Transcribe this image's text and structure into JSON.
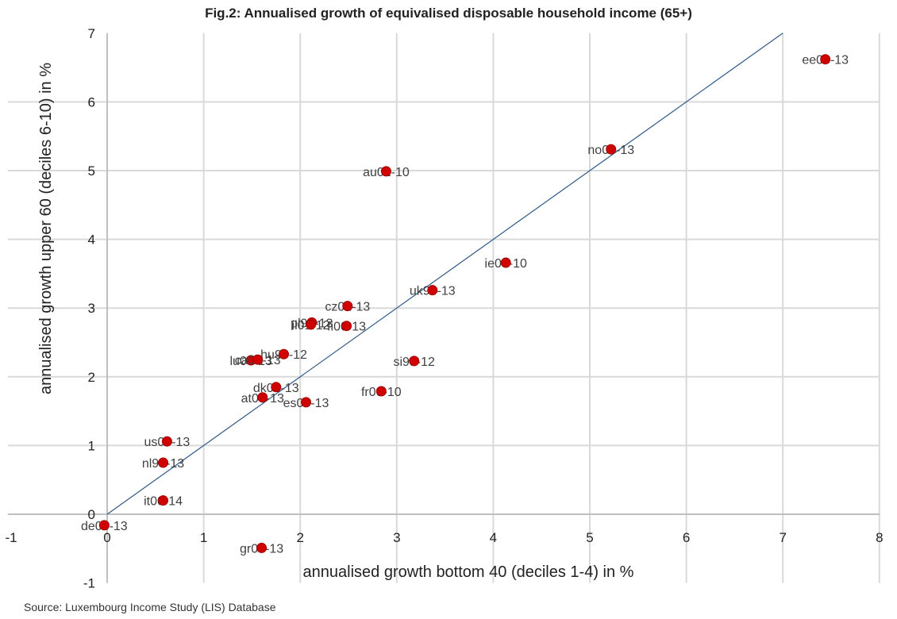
{
  "chart_data": {
    "type": "scatter",
    "title": "Fig.2: Annualised growth of equivalised disposable household income (65+)",
    "xlabel": "annualised growth bottom 40 (deciles 1-4) in %",
    "ylabel": "annualised growth upper 60 (deciles 6-10) in %",
    "xlim": [
      -1,
      8
    ],
    "ylim": [
      -1,
      7
    ],
    "xticks": [
      -1,
      0,
      1,
      2,
      3,
      4,
      5,
      6,
      7,
      8
    ],
    "yticks": [
      -1,
      0,
      1,
      2,
      3,
      4,
      5,
      6,
      7
    ],
    "grid": true,
    "reference_line": {
      "name": "45-degree line",
      "x": [
        0,
        7
      ],
      "y": [
        0,
        7
      ],
      "color": "#2e5a87"
    },
    "marker_color": "#d00000",
    "points": [
      {
        "label": "ee00-13",
        "x": 7.44,
        "y": 6.62
      },
      {
        "label": "no00-13",
        "x": 5.22,
        "y": 5.31
      },
      {
        "label": "au01-10",
        "x": 2.89,
        "y": 4.99
      },
      {
        "label": "ie00-10",
        "x": 4.13,
        "y": 3.66
      },
      {
        "label": "uk99-13",
        "x": 3.37,
        "y": 3.26
      },
      {
        "label": "cz02-13",
        "x": 2.49,
        "y": 3.03
      },
      {
        "label": "pl99-13",
        "x": 2.12,
        "y": 2.79
      },
      {
        "label": "il01-12",
        "x": 2.11,
        "y": 2.76
      },
      {
        "label": "fi00-13",
        "x": 2.48,
        "y": 2.74
      },
      {
        "label": "hu99-12",
        "x": 1.83,
        "y": 2.33
      },
      {
        "label": "lu00-13",
        "x": 1.49,
        "y": 2.24
      },
      {
        "label": "ca00-13",
        "x": 1.56,
        "y": 2.25
      },
      {
        "label": "si99-12",
        "x": 3.18,
        "y": 2.23
      },
      {
        "label": "dk00-13",
        "x": 1.75,
        "y": 1.85
      },
      {
        "label": "fr00-10",
        "x": 2.84,
        "y": 1.79
      },
      {
        "label": "at00-13",
        "x": 1.61,
        "y": 1.7
      },
      {
        "label": "es00-13",
        "x": 2.06,
        "y": 1.63
      },
      {
        "label": "us00-13",
        "x": 0.62,
        "y": 1.06
      },
      {
        "label": "nl99-13",
        "x": 0.58,
        "y": 0.75
      },
      {
        "label": "it00-14",
        "x": 0.58,
        "y": 0.2
      },
      {
        "label": "de00-13",
        "x": -0.03,
        "y": -0.16
      },
      {
        "label": "gr00-13",
        "x": 1.6,
        "y": -0.49
      }
    ]
  },
  "source": "Source: Luxembourg Income Study (LIS) Database"
}
